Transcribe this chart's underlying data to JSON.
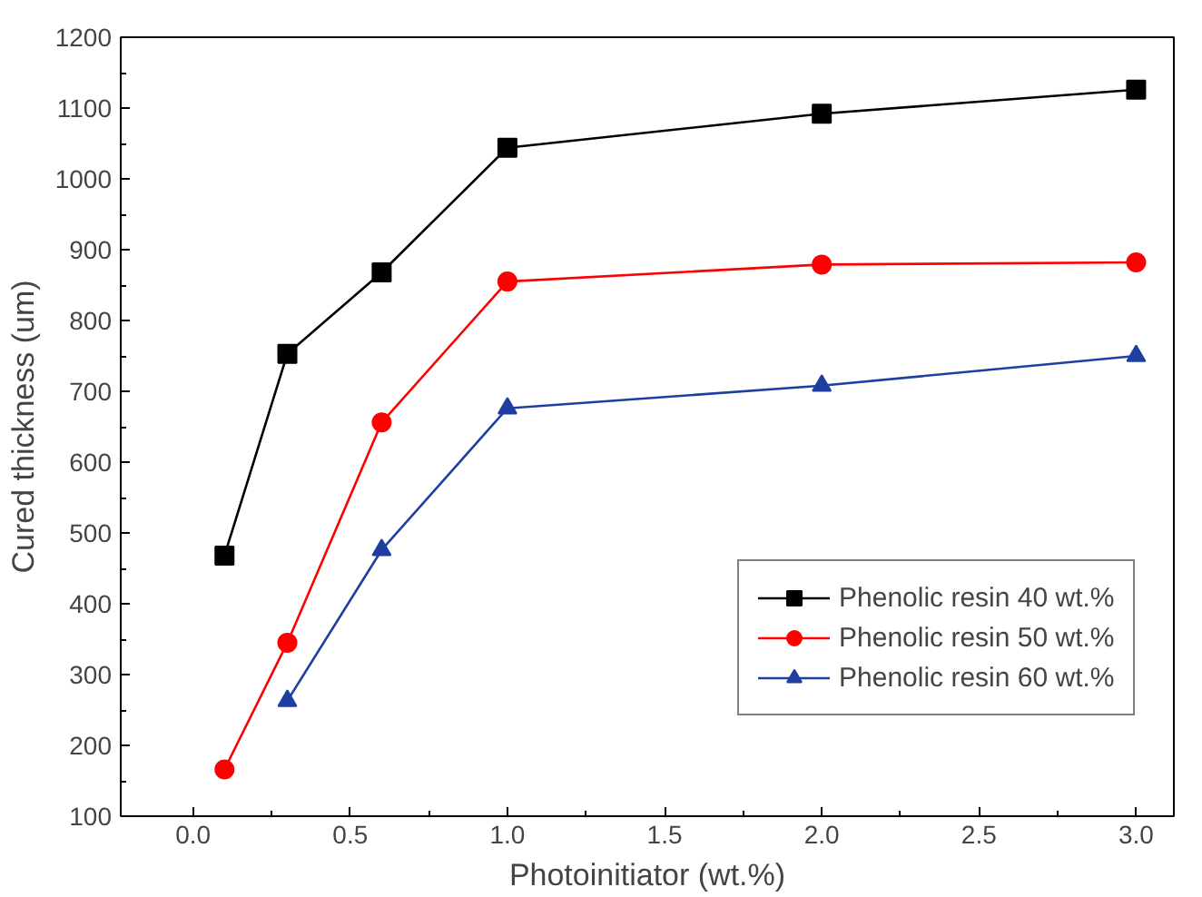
{
  "chart_data": {
    "type": "line",
    "xlabel": "Photoinitiator (wt.%)",
    "ylabel": "Cured thickness (um)",
    "xlim": [
      -0.23,
      3.12
    ],
    "ylim": [
      100,
      1200
    ],
    "xticks": [
      {
        "value": 0,
        "label": "0.0"
      },
      {
        "value": 0.5,
        "label": "0.5"
      },
      {
        "value": 1,
        "label": "1.0"
      },
      {
        "value": 1.5,
        "label": "1.5"
      },
      {
        "value": 2,
        "label": "2.0"
      },
      {
        "value": 2.5,
        "label": "2.5"
      },
      {
        "value": 3,
        "label": "3.0"
      }
    ],
    "yticks": [
      100,
      200,
      300,
      400,
      500,
      600,
      700,
      800,
      900,
      1000,
      1100,
      1200
    ],
    "grid": false,
    "legend": "right",
    "line_style": "solid",
    "series": [
      {
        "name": "Phenolic resin 40 wt.%",
        "color": "#000000",
        "marker": "square",
        "x": [
          0.1,
          0.3,
          0.6,
          1.0,
          2.0,
          3.0
        ],
        "values": [
          468,
          753,
          868,
          1044,
          1092,
          1126
        ]
      },
      {
        "name": "Phenolic resin 50 wt.%",
        "color": "#ff0000",
        "marker": "circle",
        "x": [
          0.1,
          0.3,
          0.6,
          1.0,
          2.0,
          3.0
        ],
        "values": [
          166,
          345,
          656,
          855,
          879,
          882
        ]
      },
      {
        "name": "Phenolic resin 60 wt.%",
        "color": "#1f3fa0",
        "marker": "triangle",
        "x": [
          0.3,
          0.6,
          1.0,
          2.0,
          3.0
        ],
        "values": [
          263,
          476,
          676,
          708,
          750
        ]
      }
    ]
  }
}
